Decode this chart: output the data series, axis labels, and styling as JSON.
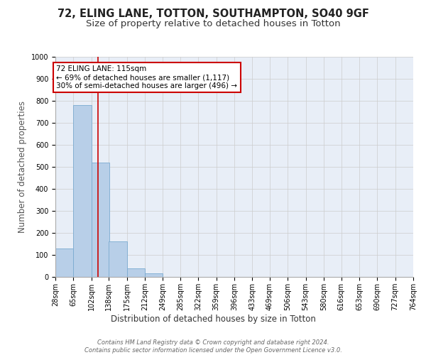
{
  "title": "72, ELING LANE, TOTTON, SOUTHAMPTON, SO40 9GF",
  "subtitle": "Size of property relative to detached houses in Totton",
  "xlabel": "Distribution of detached houses by size in Totton",
  "ylabel": "Number of detached properties",
  "bin_edges": [
    28,
    65,
    102,
    138,
    175,
    212,
    249,
    285,
    322,
    359,
    396,
    433,
    469,
    506,
    543,
    580,
    616,
    653,
    690,
    727,
    764
  ],
  "bar_heights": [
    130,
    780,
    520,
    160,
    40,
    15,
    0,
    0,
    0,
    0,
    0,
    0,
    0,
    0,
    0,
    0,
    0,
    0,
    0,
    0
  ],
  "bar_color": "#b8cfe8",
  "bar_edge_color": "#7aaad0",
  "bar_linewidth": 0.6,
  "grid_color": "#cccccc",
  "bg_color": "#e8eef7",
  "property_size": 115,
  "red_line_color": "#cc0000",
  "annotation_text": "72 ELING LANE: 115sqm\n← 69% of detached houses are smaller (1,117)\n30% of semi-detached houses are larger (496) →",
  "annotation_box_color": "#cc0000",
  "ylim": [
    0,
    1000
  ],
  "yticks": [
    0,
    100,
    200,
    300,
    400,
    500,
    600,
    700,
    800,
    900,
    1000
  ],
  "footer_text": "Contains HM Land Registry data © Crown copyright and database right 2024.\nContains public sector information licensed under the Open Government Licence v3.0.",
  "title_fontsize": 10.5,
  "subtitle_fontsize": 9.5,
  "tick_fontsize": 7,
  "ylabel_fontsize": 8.5,
  "xlabel_fontsize": 8.5,
  "annotation_fontsize": 7.5
}
